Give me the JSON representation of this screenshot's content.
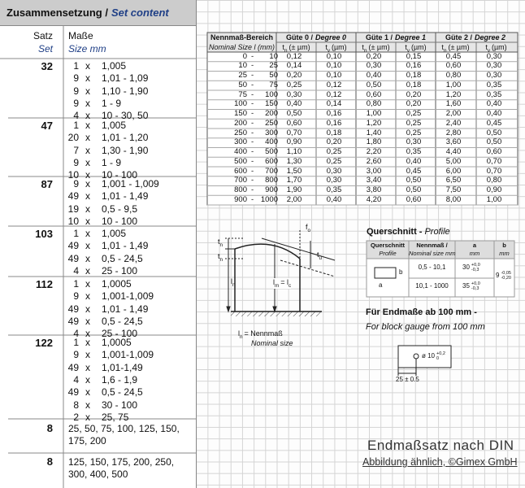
{
  "set_content": {
    "title": "Zusammensetzung /",
    "title_en": "Set content",
    "col_satz": "Satz",
    "col_set": "Set",
    "col_masse": "Maße",
    "col_size": "Size mm",
    "sets": [
      {
        "count": "32",
        "items": [
          [
            "1",
            "x",
            "1,005"
          ],
          [
            "9",
            "x",
            "1,01 - 1,09"
          ],
          [
            "9",
            "x",
            "1,10 - 1,90"
          ],
          [
            "9",
            "x",
            "1 - 9"
          ],
          [
            "4",
            "x",
            "10 - 30, 50"
          ]
        ]
      },
      {
        "count": "47",
        "items": [
          [
            "1",
            "x",
            "1,005"
          ],
          [
            "20",
            "x",
            "1,01 - 1,20"
          ],
          [
            "7",
            "x",
            "1,30 - 1,90"
          ],
          [
            "9",
            "x",
            "1 - 9"
          ],
          [
            "10",
            "x",
            "10 - 100"
          ]
        ]
      },
      {
        "count": "87",
        "items": [
          [
            "9",
            "x",
            "1,001 - 1,009"
          ],
          [
            "49",
            "x",
            "1,01 - 1,49"
          ],
          [
            "19",
            "x",
            "0,5 - 9,5"
          ],
          [
            "10",
            "x",
            "10 - 100"
          ]
        ]
      },
      {
        "count": "103",
        "items": [
          [
            "1",
            "x",
            "1,005"
          ],
          [
            "49",
            "x",
            "1,01 - 1,49"
          ],
          [
            "49",
            "x",
            "0,5 - 24,5"
          ],
          [
            "4",
            "x",
            "25 - 100"
          ]
        ]
      },
      {
        "count": "112",
        "items": [
          [
            "1",
            "x",
            "1,0005"
          ],
          [
            "9",
            "x",
            "1,001-1,009"
          ],
          [
            "49",
            "x",
            "1,01 - 1,49"
          ],
          [
            "49",
            "x",
            "0,5 - 24,5"
          ],
          [
            "4",
            "x",
            "25 - 100"
          ]
        ]
      },
      {
        "count": "122",
        "items": [
          [
            "1",
            "x",
            "1,0005"
          ],
          [
            "9",
            "x",
            "1,001-1,009"
          ],
          [
            "49",
            "x",
            "1,01-1,49"
          ],
          [
            "4",
            "x",
            "1,6 - 1,9"
          ],
          [
            "49",
            "x",
            "0,5 - 24,5"
          ],
          [
            "8",
            "x",
            "30 - 100"
          ],
          [
            "2",
            "x",
            "25, 75"
          ]
        ]
      },
      {
        "count": "8",
        "text": "25, 50, 75, 100, 125, 150, 175, 200"
      },
      {
        "count": "8",
        "text": "125, 150, 175, 200, 250, 300, 400, 500"
      }
    ]
  },
  "tolerance_table": {
    "range_header": "Nennmaß-Bereich",
    "range_header_en": "Nominal Size l (mm)",
    "sep": "-",
    "groups": [
      {
        "de": "Güte 0 /",
        "en": "Degree 0"
      },
      {
        "de": "Güte 1 /",
        "en": "Degree 1"
      },
      {
        "de": "Güte 2 /",
        "en": "Degree 2"
      }
    ],
    "sub_tn": {
      "sym": "t",
      "sub": "n",
      "unit": "(± µm)"
    },
    "sub_tv": {
      "sym": "t",
      "sub": "v",
      "unit": "(µm)"
    },
    "rows": [
      [
        "0",
        "10",
        "0,12",
        "0,10",
        "0,20",
        "0,15",
        "0,45",
        "0,30"
      ],
      [
        "10",
        "25",
        "0,14",
        "0,10",
        "0,30",
        "0,16",
        "0,60",
        "0,30"
      ],
      [
        "25",
        "50",
        "0,20",
        "0,10",
        "0,40",
        "0,18",
        "0,80",
        "0,30"
      ],
      [
        "50",
        "75",
        "0,25",
        "0,12",
        "0,50",
        "0,18",
        "1,00",
        "0,35"
      ],
      [
        "75",
        "100",
        "0,30",
        "0,12",
        "0,60",
        "0,20",
        "1,20",
        "0,35"
      ],
      [
        "100",
        "150",
        "0,40",
        "0,14",
        "0,80",
        "0,20",
        "1,60",
        "0,40"
      ],
      [
        "150",
        "200",
        "0,50",
        "0,16",
        "1,00",
        "0,25",
        "2,00",
        "0,40"
      ],
      [
        "200",
        "250",
        "0,60",
        "0,16",
        "1,20",
        "0,25",
        "2,40",
        "0,45"
      ],
      [
        "250",
        "300",
        "0,70",
        "0,18",
        "1,40",
        "0,25",
        "2,80",
        "0,50"
      ],
      [
        "300",
        "400",
        "0,90",
        "0,20",
        "1,80",
        "0,30",
        "3,60",
        "0,50"
      ],
      [
        "400",
        "500",
        "1,10",
        "0,25",
        "2,20",
        "0,35",
        "4,40",
        "0,60"
      ],
      [
        "500",
        "600",
        "1,30",
        "0,25",
        "2,60",
        "0,40",
        "5,00",
        "0,70"
      ],
      [
        "600",
        "700",
        "1,50",
        "0,30",
        "3,00",
        "0,45",
        "6,00",
        "0,70"
      ],
      [
        "700",
        "800",
        "1,70",
        "0,30",
        "3,40",
        "0,50",
        "6,50",
        "0,80"
      ],
      [
        "800",
        "900",
        "1,90",
        "0,35",
        "3,80",
        "0,50",
        "7,50",
        "0,90"
      ],
      [
        "900",
        "1000",
        "2,00",
        "0,40",
        "4,20",
        "0,60",
        "8,00",
        "1,00"
      ]
    ]
  },
  "diagram": {
    "fo": {
      "m": "f",
      "s": "o"
    },
    "tn": {
      "m": "t",
      "s": "n"
    },
    "tu": {
      "m": "t",
      "s": "u"
    },
    "ln": {
      "m": "l",
      "s": "n"
    },
    "lm": {
      "m": "l",
      "s": "m",
      "eq": "= l",
      "s2": "c"
    },
    "legend": {
      "m": "l",
      "s": "n",
      "rest": "= Nennmaß"
    },
    "legend_en": "Nominal size"
  },
  "profile": {
    "title": "Querschnitt -",
    "title_en": "Profile",
    "headers": [
      [
        "Querschnitt",
        "Profile"
      ],
      [
        "Nennmaß /",
        "Nominal size mm"
      ],
      [
        "a",
        "mm"
      ],
      [
        "b",
        "mm"
      ]
    ],
    "label_b": "b",
    "label_a": "a",
    "rows": [
      {
        "size": "0,5 - 10,1",
        "a": "30",
        "a_up": "+0,0",
        "a_lo": "-0,3",
        "b": "9",
        "b_up": "-0,05",
        "b_lo": "-0,20"
      },
      {
        "size": "10,1 - 1000",
        "a": "35",
        "a_up": "+0,0",
        "a_lo": "-0,3"
      }
    ],
    "note": "Für Endmaße ab 100 mm -",
    "note_en": "For block gauge from 100 mm",
    "hole": "ø 10",
    "hole_up": "+0,2",
    "hole_lo": "0",
    "offset": "25 ± 0.5"
  },
  "footer": {
    "title": "Endmaßsatz nach DIN",
    "credit": "Abbildung ähnlich, ©Gimex GmbH"
  }
}
